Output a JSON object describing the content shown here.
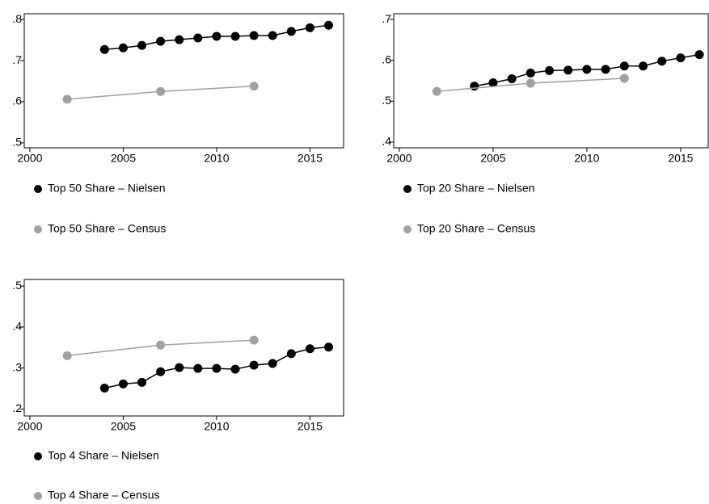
{
  "chart_data": [
    {
      "type": "line",
      "xlim": [
        1999.7,
        2016.8
      ],
      "ylim": [
        0.488,
        0.814
      ],
      "xticks": [
        2000,
        2005,
        2010,
        2015
      ],
      "yticks": [
        {
          "value": 0.5,
          "label": ".5"
        },
        {
          "value": 0.6,
          "label": ".6"
        },
        {
          "value": 0.7,
          "label": ".7"
        },
        {
          "value": 0.8,
          "label": ".8"
        }
      ],
      "series": [
        {
          "name": "Top 50 Share – Nielsen",
          "color": "#000000",
          "x": [
            2004,
            2005,
            2006,
            2007,
            2008,
            2009,
            2010,
            2011,
            2012,
            2013,
            2014,
            2015,
            2016
          ],
          "values": [
            0.727,
            0.731,
            0.737,
            0.747,
            0.751,
            0.755,
            0.759,
            0.759,
            0.761,
            0.761,
            0.771,
            0.78,
            0.786
          ]
        },
        {
          "name": "Top 50 Share – Census",
          "color": "#a0a0a0",
          "x": [
            2002,
            2007,
            2012
          ],
          "values": [
            0.606,
            0.625,
            0.638
          ]
        }
      ]
    },
    {
      "type": "line",
      "xlim": [
        1999.7,
        2016.47
      ],
      "ylim": [
        0.386,
        0.714
      ],
      "xticks": [
        2000,
        2005,
        2010,
        2015
      ],
      "yticks": [
        {
          "value": 0.4,
          "label": ".4"
        },
        {
          "value": 0.5,
          "label": ".5"
        },
        {
          "value": 0.6,
          "label": ".6"
        },
        {
          "value": 0.7,
          "label": ".7"
        }
      ],
      "series": [
        {
          "name": "Top 20 Share – Nielsen",
          "color": "#000000",
          "x": [
            2004,
            2005,
            2006,
            2007,
            2008,
            2009,
            2010,
            2011,
            2012,
            2013,
            2014,
            2015,
            2016
          ],
          "values": [
            0.537,
            0.545,
            0.555,
            0.569,
            0.575,
            0.576,
            0.578,
            0.578,
            0.586,
            0.586,
            0.598,
            0.606,
            0.614
          ]
        },
        {
          "name": "Top 20 Share – Census",
          "color": "#a0a0a0",
          "x": [
            2002,
            2007,
            2012
          ],
          "values": [
            0.524,
            0.544,
            0.556
          ]
        }
      ]
    },
    {
      "type": "line",
      "xlim": [
        1999.7,
        2016.8
      ],
      "ylim": [
        0.183,
        0.516
      ],
      "xticks": [
        2000,
        2005,
        2010,
        2015
      ],
      "yticks": [
        {
          "value": 0.2,
          "label": ".2"
        },
        {
          "value": 0.3,
          "label": ".3"
        },
        {
          "value": 0.4,
          "label": ".4"
        },
        {
          "value": 0.5,
          "label": ".5"
        }
      ],
      "series": [
        {
          "name": "Top 4 Share – Nielsen",
          "color": "#000000",
          "x": [
            2004,
            2005,
            2006,
            2007,
            2008,
            2009,
            2010,
            2011,
            2012,
            2013,
            2014,
            2015,
            2016
          ],
          "values": [
            0.251,
            0.261,
            0.265,
            0.291,
            0.301,
            0.299,
            0.299,
            0.297,
            0.307,
            0.311,
            0.335,
            0.347,
            0.351
          ]
        },
        {
          "name": "Top 4 Share – Census",
          "color": "#a0a0a0",
          "x": [
            2002,
            2007,
            2012
          ],
          "values": [
            0.33,
            0.356,
            0.368
          ]
        }
      ]
    }
  ]
}
